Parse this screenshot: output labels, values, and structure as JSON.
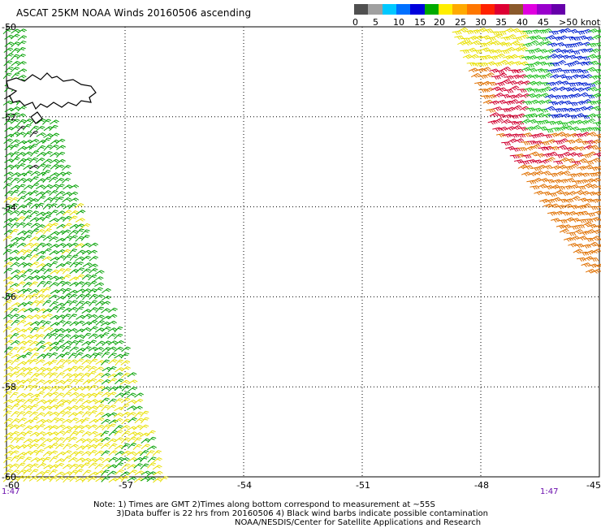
{
  "title": "ASCAT 25KM NOAA Winds 20160506 ascending",
  "speed_scale": {
    "ticks": [
      "0",
      "5",
      "10",
      "15",
      "20",
      "25",
      "30",
      "35",
      "40",
      "45",
      ">50 knots"
    ],
    "colors": [
      "#505050",
      "#a0a0a0",
      "#00c8ff",
      "#0070ff",
      "#0000dd",
      "#00aa00",
      "#ffee00",
      "#ffaa00",
      "#ff7700",
      "#ff2200",
      "#dd0033",
      "#8b5a2b",
      "#e000e0",
      "#9900cc",
      "#6600aa"
    ]
  },
  "map": {
    "lat_labels": [
      "-50",
      "-52",
      "-54",
      "-56",
      "-58",
      "-60"
    ],
    "lon_labels": [
      "-60",
      "-57",
      "-54",
      "-51",
      "-48",
      "-45"
    ],
    "time_left": "1:47",
    "time_right": "1:47",
    "lat_range": [
      -60,
      -50
    ],
    "lon_range": [
      -60,
      -45
    ]
  },
  "notes": {
    "line1": "Note: 1) Times are GMT 2)Times along bottom correspond to measurement at ~55S",
    "line2": "3)Data buffer is 22 hrs from 20160506 4) Black wind barbs indicate possible contamination",
    "line3": "NOAA/NESDIS/Center for Satellite Applications and Research"
  }
}
